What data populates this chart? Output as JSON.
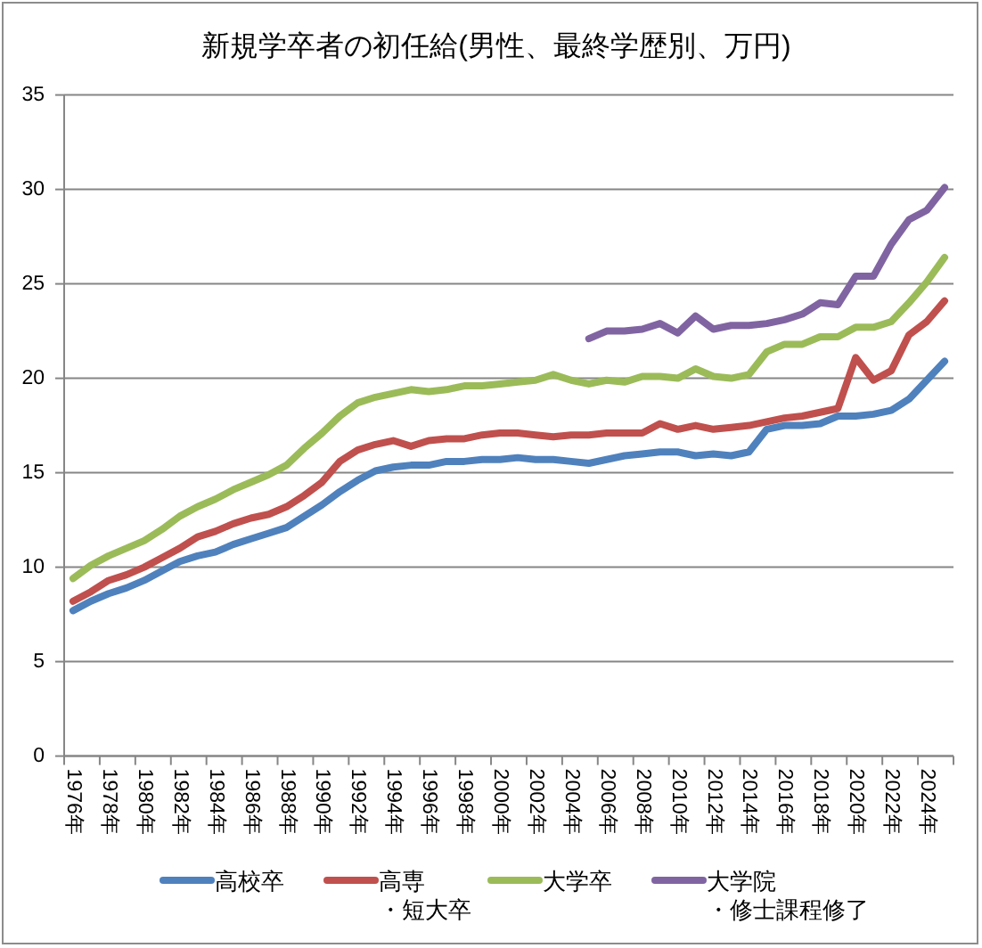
{
  "chart_data": {
    "type": "line",
    "title": "新規学卒者の初任給(男性、最終学歴別、万円)",
    "categories": [
      "1976年",
      null,
      "1978年",
      null,
      "1980年",
      null,
      "1982年",
      null,
      "1984年",
      null,
      "1986年",
      null,
      "1988年",
      null,
      "1990年",
      null,
      "1992年",
      null,
      "1994年",
      null,
      "1996年",
      null,
      "1998年",
      null,
      "2000年",
      null,
      "2002年",
      null,
      "2004年",
      null,
      "2006年",
      null,
      "2008年",
      null,
      "2010年",
      null,
      "2012年",
      null,
      "2014年",
      null,
      "2016年",
      null,
      "2018年",
      null,
      "2020年",
      null,
      "2022年",
      null,
      "2024年",
      null
    ],
    "series": [
      {
        "name": "高校卒",
        "color": "#4f81bd",
        "values": [
          7.7,
          8.2,
          8.6,
          8.9,
          9.3,
          9.8,
          10.3,
          10.6,
          10.8,
          11.2,
          11.5,
          11.8,
          12.1,
          12.7,
          13.3,
          14.0,
          14.6,
          15.1,
          15.3,
          15.4,
          15.4,
          15.6,
          15.6,
          15.7,
          15.7,
          15.8,
          15.7,
          15.7,
          15.6,
          15.5,
          15.7,
          15.9,
          16.0,
          16.1,
          16.1,
          15.9,
          16.0,
          15.9,
          16.1,
          17.3,
          17.5,
          17.5,
          17.6,
          18.0,
          18.0,
          18.1,
          18.3,
          18.9,
          19.9,
          20.9
        ]
      },
      {
        "name": "高専・短大卒",
        "color": "#c0504d",
        "values": [
          8.2,
          8.7,
          9.3,
          9.6,
          10.0,
          10.5,
          11.0,
          11.6,
          11.9,
          12.3,
          12.6,
          12.8,
          13.2,
          13.8,
          14.5,
          15.6,
          16.2,
          16.5,
          16.7,
          16.4,
          16.7,
          16.8,
          16.8,
          17.0,
          17.1,
          17.1,
          17.0,
          16.9,
          17.0,
          17.0,
          17.1,
          17.1,
          17.1,
          17.6,
          17.3,
          17.5,
          17.3,
          17.4,
          17.5,
          17.7,
          17.9,
          18.0,
          18.2,
          18.4,
          21.1,
          19.9,
          20.4,
          22.3,
          23.0,
          24.1
        ]
      },
      {
        "name": "大学卒",
        "color": "#9bbb59",
        "values": [
          9.4,
          10.1,
          10.6,
          11.0,
          11.4,
          12.0,
          12.7,
          13.2,
          13.6,
          14.1,
          14.5,
          14.9,
          15.4,
          16.3,
          17.1,
          18.0,
          18.7,
          19.0,
          19.2,
          19.4,
          19.3,
          19.4,
          19.6,
          19.6,
          19.7,
          19.8,
          19.9,
          20.2,
          19.9,
          19.7,
          19.9,
          19.8,
          20.1,
          20.1,
          20.0,
          20.5,
          20.1,
          20.0,
          20.2,
          21.4,
          21.8,
          21.8,
          22.2,
          22.2,
          22.7,
          22.7,
          23.0,
          24.0,
          25.1,
          26.4
        ]
      },
      {
        "name": "大学院・修士課程修了",
        "color": "#8064a2",
        "values": [
          null,
          null,
          null,
          null,
          null,
          null,
          null,
          null,
          null,
          null,
          null,
          null,
          null,
          null,
          null,
          null,
          null,
          null,
          null,
          null,
          null,
          null,
          null,
          null,
          null,
          null,
          null,
          null,
          null,
          22.1,
          22.5,
          22.5,
          22.6,
          22.9,
          22.4,
          23.3,
          22.6,
          22.8,
          22.8,
          22.9,
          23.1,
          23.4,
          24.0,
          23.9,
          25.4,
          25.4,
          27.1,
          28.4,
          28.9,
          30.1
        ]
      }
    ],
    "ylim": [
      0,
      35
    ],
    "yticks": [
      0,
      5,
      10,
      15,
      20,
      25,
      30,
      35
    ],
    "grid": "y",
    "legend": "bottom"
  }
}
